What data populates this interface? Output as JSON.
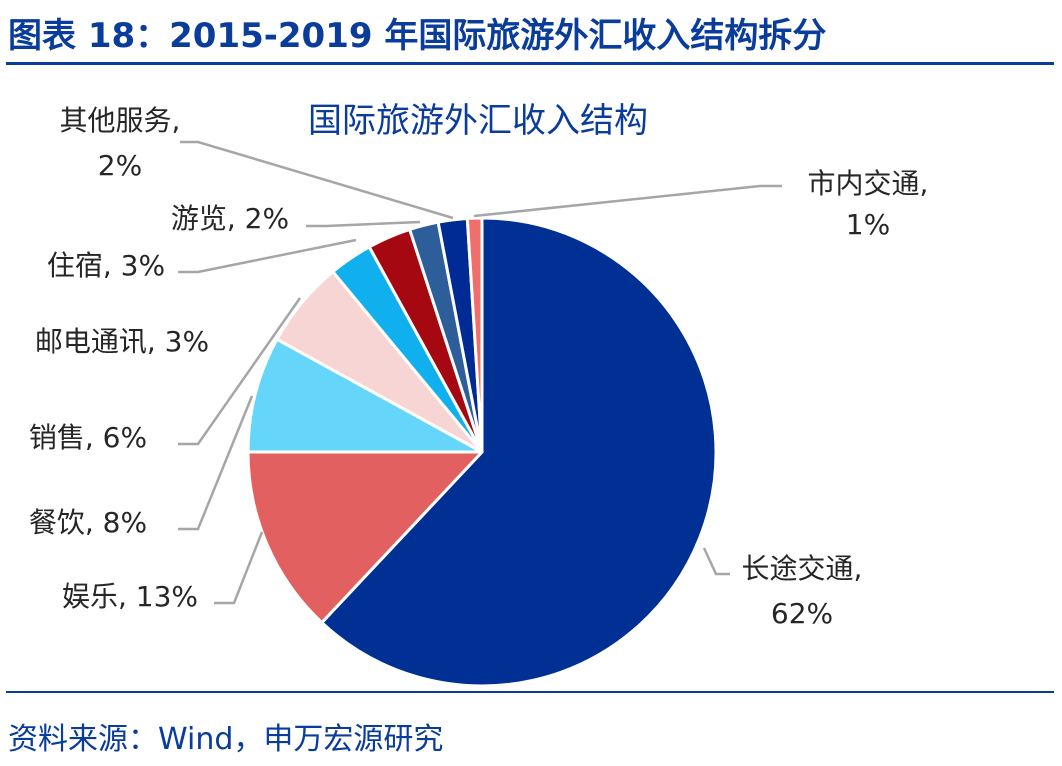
{
  "figure": {
    "title": "图表 18：2015-2019 年国际旅游外汇收入结构拆分",
    "source": "资料来源：Wind，申万宏源研究"
  },
  "colors": {
    "accent": "#0a3c9c",
    "leader_line": "#a6a6a6"
  },
  "chart_data": {
    "type": "pie",
    "title": "国际旅游外汇收入结构",
    "unit": "%",
    "slices": [
      {
        "label": "长途交通",
        "value": 62,
        "display": "62%",
        "color": "#003093"
      },
      {
        "label": "娱乐",
        "value": 13,
        "display": "13%",
        "color": "#e36061"
      },
      {
        "label": "餐饮",
        "value": 8,
        "display": "8%",
        "color": "#66d5fa"
      },
      {
        "label": "销售",
        "value": 6,
        "display": "6%",
        "color": "#f8d5d5"
      },
      {
        "label": "邮电通讯",
        "value": 3,
        "display": "3%",
        "color": "#10b0ee"
      },
      {
        "label": "住宿",
        "value": 3,
        "display": "3%",
        "color": "#a50811"
      },
      {
        "label": "游览",
        "value": 2,
        "display": "2%",
        "color": "#2e5e9a"
      },
      {
        "label": "其他服务",
        "value": 2,
        "display": "2%",
        "color": "#002a94"
      },
      {
        "label": "市内交通",
        "value": 1,
        "display": "1%",
        "color": "#ef6f6d"
      }
    ]
  }
}
